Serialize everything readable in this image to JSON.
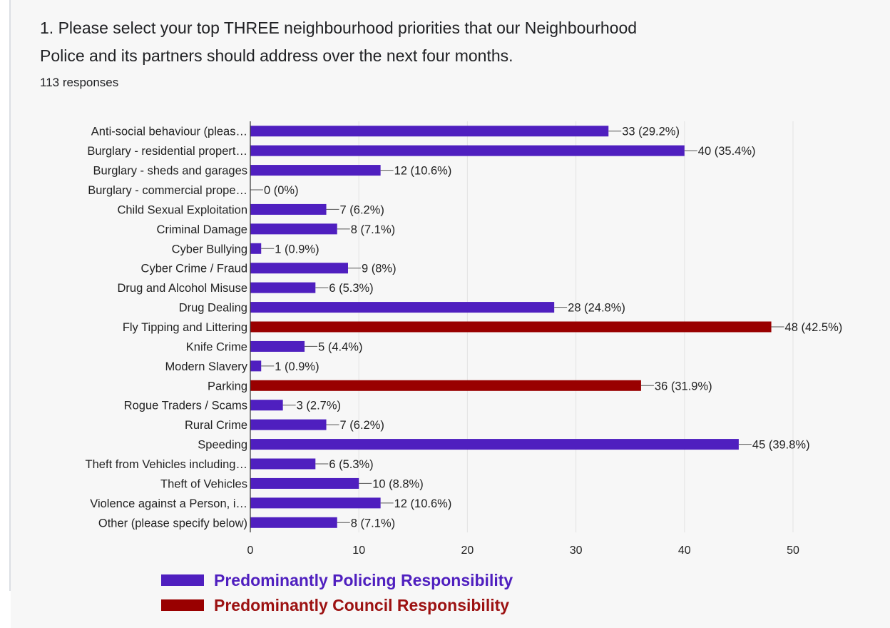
{
  "question": {
    "line1": "1. Please select your top THREE neighbourhood priorities that our Neighbourhood",
    "line2": "Police and its partners should address over the next four months."
  },
  "responses": "113 responses",
  "colors": {
    "policing": "#4f1fbf",
    "council": "#990000",
    "gridline": "#e3e3e3",
    "axis": "#333333"
  },
  "legend": [
    {
      "label": "Predominantly Policing Responsibility",
      "color": "#4f1fbf",
      "text_color": "#4f1fbf"
    },
    {
      "label": "Predominantly Council Responsibility",
      "color": "#990000",
      "text_color": "#9c1111"
    }
  ],
  "chart_data": {
    "type": "bar",
    "orientation": "horizontal",
    "xlim": [
      0,
      50
    ],
    "xticks": [
      0,
      10,
      20,
      30,
      40,
      50
    ],
    "grid": true,
    "legend_position": "bottom",
    "categories": [
      "Anti-social behaviour (pleas…",
      "Burglary - residential propert…",
      "Burglary - sheds and garages",
      "Burglary - commercial prope…",
      "Child Sexual Exploitation",
      "Criminal Damage",
      "Cyber Bullying",
      "Cyber Crime / Fraud",
      "Drug and Alcohol Misuse",
      "Drug Dealing",
      "Fly Tipping and Littering",
      "Knife Crime",
      "Modern Slavery",
      "Parking",
      "Rogue Traders / Scams",
      "Rural Crime",
      "Speeding",
      "Theft from Vehicles including…",
      "Theft of Vehicles",
      "Violence against a Person, i…",
      "Other (please specify below)"
    ],
    "values": [
      33,
      40,
      12,
      0,
      7,
      8,
      1,
      9,
      6,
      28,
      48,
      5,
      1,
      36,
      3,
      7,
      45,
      6,
      10,
      12,
      8
    ],
    "labels": [
      "33 (29.2%)",
      "40 (35.4%)",
      "12 (10.6%)",
      "0 (0%)",
      "7 (6.2%)",
      "8 (7.1%)",
      "1 (0.9%)",
      "9 (8%)",
      "6 (5.3%)",
      "28 (24.8%)",
      "48 (42.5%)",
      "5 (4.4%)",
      "1 (0.9%)",
      "36 (31.9%)",
      "3 (2.7%)",
      "7 (6.2%)",
      "45 (39.8%)",
      "6 (5.3%)",
      "10 (8.8%)",
      "12 (10.6%)",
      "8 (7.1%)"
    ],
    "responsibility": [
      "policing",
      "policing",
      "policing",
      "policing",
      "policing",
      "policing",
      "policing",
      "policing",
      "policing",
      "policing",
      "council",
      "policing",
      "policing",
      "council",
      "policing",
      "policing",
      "policing",
      "policing",
      "policing",
      "policing",
      "policing"
    ]
  }
}
